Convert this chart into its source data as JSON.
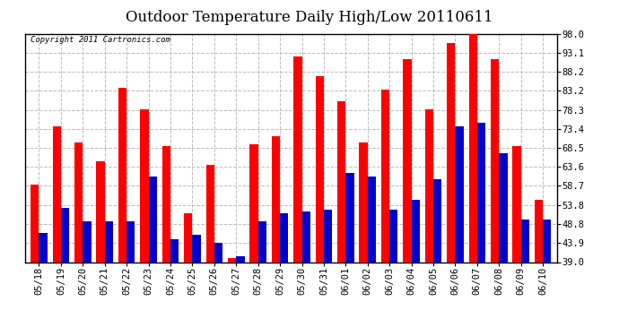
{
  "title": "Outdoor Temperature Daily High/Low 20110611",
  "copyright": "Copyright 2011 Cartronics.com",
  "dates": [
    "05/18",
    "05/19",
    "05/20",
    "05/21",
    "05/22",
    "05/23",
    "05/24",
    "05/25",
    "05/26",
    "05/27",
    "05/28",
    "05/29",
    "05/30",
    "05/31",
    "06/01",
    "06/02",
    "06/03",
    "06/04",
    "06/05",
    "06/06",
    "06/07",
    "06/08",
    "06/09",
    "06/10"
  ],
  "highs": [
    59.0,
    74.0,
    70.0,
    65.0,
    84.0,
    78.5,
    69.0,
    51.5,
    64.0,
    40.0,
    69.5,
    71.5,
    92.0,
    87.0,
    80.5,
    70.0,
    83.5,
    91.5,
    78.5,
    95.5,
    98.0,
    91.5,
    69.0,
    55.0
  ],
  "lows": [
    46.5,
    53.0,
    49.5,
    49.5,
    49.5,
    61.0,
    45.0,
    46.0,
    44.0,
    40.5,
    49.5,
    51.5,
    52.0,
    52.5,
    62.0,
    61.0,
    52.5,
    55.0,
    60.5,
    74.0,
    75.0,
    67.0,
    50.0,
    50.0
  ],
  "high_color": "#FF0000",
  "low_color": "#0000CC",
  "bg_color": "#FFFFFF",
  "grid_color": "#BBBBBB",
  "yticks": [
    39.0,
    43.9,
    48.8,
    53.8,
    58.7,
    63.6,
    68.5,
    73.4,
    78.3,
    83.2,
    88.2,
    93.1,
    98.0
  ],
  "ymin": 39.0,
  "ymax": 98.0,
  "title_fontsize": 12,
  "copyright_fontsize": 6.5,
  "tick_fontsize": 7.5,
  "bar_width": 0.38
}
